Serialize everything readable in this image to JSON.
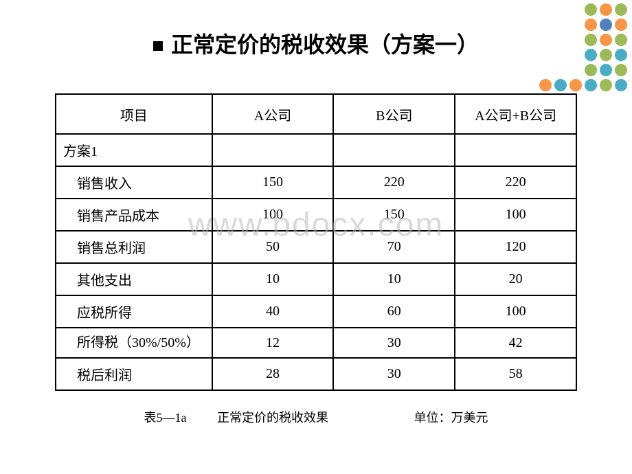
{
  "title": "正常定价的税收效果（方案一）",
  "watermark": "www.bdocx.com",
  "decoration": {
    "colors": {
      "green": "#9bbb59",
      "orange": "#f79646",
      "blue": "#4f81bd",
      "teal": "#4bacc6"
    },
    "dots": [
      {
        "row": 0,
        "col": 3,
        "color": "#9bbb59"
      },
      {
        "row": 0,
        "col": 4,
        "color": "#f79646"
      },
      {
        "row": 0,
        "col": 5,
        "color": "#9bbb59"
      },
      {
        "row": 1,
        "col": 3,
        "color": "#f79646"
      },
      {
        "row": 1,
        "col": 4,
        "color": "#4f81bd"
      },
      {
        "row": 1,
        "col": 5,
        "color": "#f79646"
      },
      {
        "row": 2,
        "col": 3,
        "color": "#9bbb59"
      },
      {
        "row": 2,
        "col": 4,
        "color": "#f79646"
      },
      {
        "row": 2,
        "col": 5,
        "color": "#9bbb59"
      },
      {
        "row": 3,
        "col": 3,
        "color": "#4bacc6"
      },
      {
        "row": 3,
        "col": 4,
        "color": "#9bbb59"
      },
      {
        "row": 3,
        "col": 5,
        "color": "#4bacc6"
      },
      {
        "row": 4,
        "col": 3,
        "color": "#9bbb59"
      },
      {
        "row": 4,
        "col": 4,
        "color": "#4bacc6"
      },
      {
        "row": 4,
        "col": 5,
        "color": "#9bbb59"
      },
      {
        "row": 5,
        "col": 0,
        "color": "#f79646"
      },
      {
        "row": 5,
        "col": 1,
        "color": "#4bacc6"
      },
      {
        "row": 5,
        "col": 2,
        "color": "#f79646"
      },
      {
        "row": 5,
        "col": 3,
        "color": "#4bacc6"
      },
      {
        "row": 5,
        "col": 4,
        "color": "#9bbb59"
      },
      {
        "row": 5,
        "col": 5,
        "color": "#4bacc6"
      }
    ]
  },
  "table": {
    "headers": [
      "项目",
      "A公司",
      "B公司",
      "A公司+B公司"
    ],
    "plan_label": "方案1",
    "rows": [
      {
        "label": "销售收入",
        "a": "150",
        "b": "220",
        "ab": "220"
      },
      {
        "label": "销售产品成本",
        "a": "100",
        "b": "150",
        "ab": "100"
      },
      {
        "label": "销售总利润",
        "a": "50",
        "b": "70",
        "ab": "120"
      },
      {
        "label": "其他支出",
        "a": "10",
        "b": "10",
        "ab": "20"
      },
      {
        "label": "应税所得",
        "a": "40",
        "b": "60",
        "ab": "100"
      },
      {
        "label": "所得税（30%/50%）",
        "a": "12",
        "b": "30",
        "ab": "42"
      },
      {
        "label": "税后利润",
        "a": "28",
        "b": "30",
        "ab": "58"
      }
    ]
  },
  "caption": {
    "table_no": "表5—1a",
    "title": "正常定价的税收效果",
    "unit": "单位：万美元"
  }
}
